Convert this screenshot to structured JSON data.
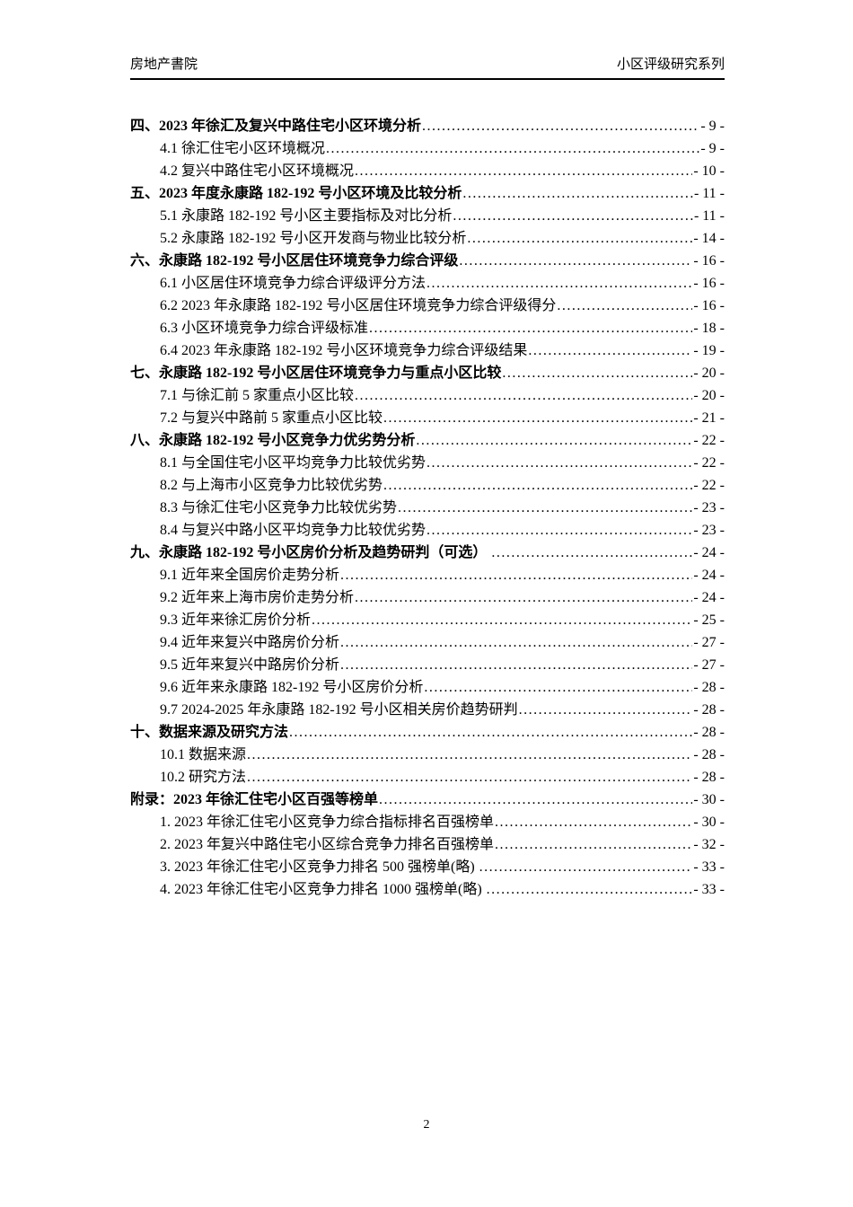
{
  "colors": {
    "text": "#000000",
    "rule": "#000000",
    "background": "#ffffff"
  },
  "header": {
    "left_title": "房地产書院",
    "right_title": "小区评级研究系列"
  },
  "toc": {
    "entries": [
      {
        "level": 1,
        "text": "四、2023 年徐汇及复兴中路住宅小区环境分析",
        "page": "- 9 -"
      },
      {
        "level": 2,
        "text": "4.1 徐汇住宅小区环境概况",
        "page": "- 9 -"
      },
      {
        "level": 2,
        "text": "4.2 复兴中路住宅小区环境概况",
        "page": "- 10 -"
      },
      {
        "level": 1,
        "text": "五、2023 年度永康路 182-192 号小区环境及比较分析",
        "page": "- 11 -"
      },
      {
        "level": 2,
        "text": "5.1 永康路 182-192 号小区主要指标及对比分析",
        "page": "- 11 -"
      },
      {
        "level": 2,
        "text": "5.2 永康路 182-192 号小区开发商与物业比较分析",
        "page": "- 14 -"
      },
      {
        "level": 1,
        "text": "六、永康路 182-192 号小区居住环境竞争力综合评级",
        "page": "- 16 -"
      },
      {
        "level": 2,
        "text": "6.1 小区居住环境竞争力综合评级评分方法",
        "page": "- 16 -"
      },
      {
        "level": 2,
        "text": "6.2 2023 年永康路 182-192 号小区居住环境竞争力综合评级得分",
        "page": "- 16 -"
      },
      {
        "level": 2,
        "text": "6.3 小区环境竞争力综合评级标准",
        "page": "- 18 -"
      },
      {
        "level": 2,
        "text": "6.4 2023 年永康路 182-192 号小区环境竞争力综合评级结果",
        "page": "- 19 -"
      },
      {
        "level": 1,
        "text": "七、永康路 182-192 号小区居住环境竞争力与重点小区比较",
        "page": "- 20 -"
      },
      {
        "level": 2,
        "text": "7.1 与徐汇前 5 家重点小区比较",
        "page": "- 20 -"
      },
      {
        "level": 2,
        "text": "7.2 与复兴中路前 5 家重点小区比较",
        "page": "- 21 -"
      },
      {
        "level": 1,
        "text": "八、永康路 182-192 号小区竞争力优劣势分析",
        "page": "- 22 -"
      },
      {
        "level": 2,
        "text": "8.1 与全国住宅小区平均竞争力比较优劣势",
        "page": "- 22 -"
      },
      {
        "level": 2,
        "text": "8.2 与上海市小区竞争力比较优劣势",
        "page": "- 22 -"
      },
      {
        "level": 2,
        "text": "8.3 与徐汇住宅小区竞争力比较优劣势",
        "page": "- 23 -"
      },
      {
        "level": 2,
        "text": "8.4 与复兴中路小区平均竞争力比较优劣势",
        "page": "- 23 -"
      },
      {
        "level": 1,
        "text": "九、永康路 182-192 号小区房价分析及趋势研判（可选） ",
        "page": "- 24 -"
      },
      {
        "level": 2,
        "text": "9.1 近年来全国房价走势分析",
        "page": "- 24 -"
      },
      {
        "level": 2,
        "text": "9.2 近年来上海市房价走势分析",
        "page": "- 24 -"
      },
      {
        "level": 2,
        "text": "9.3 近年来徐汇房价分析",
        "page": "- 25 -"
      },
      {
        "level": 2,
        "text": "9.4 近年来复兴中路房价分析",
        "page": "- 27 -"
      },
      {
        "level": 2,
        "text": "9.5 近年来复兴中路房价分析",
        "page": "- 27 -"
      },
      {
        "level": 2,
        "text": "9.6 近年来永康路 182-192 号小区房价分析",
        "page": "- 28 -"
      },
      {
        "level": 2,
        "text": "9.7 2024-2025 年永康路 182-192 号小区相关房价趋势研判",
        "page": "- 28 -"
      },
      {
        "level": 1,
        "text": "十、数据来源及研究方法",
        "page": "- 28 -"
      },
      {
        "level": 2,
        "text": "10.1 数据来源",
        "page": "- 28 -"
      },
      {
        "level": 2,
        "text": "10.2 研究方法",
        "page": "- 28 -"
      },
      {
        "level": 1,
        "text": "附录：2023 年徐汇住宅小区百强等榜单",
        "page": "- 30 -"
      },
      {
        "level": 2,
        "text": "1. 2023 年徐汇住宅小区竞争力综合指标排名百强榜单",
        "page": "- 30 -"
      },
      {
        "level": 2,
        "text": "2. 2023 年复兴中路住宅小区综合竞争力排名百强榜单",
        "page": "- 32 -"
      },
      {
        "level": 2,
        "text": "3. 2023 年徐汇住宅小区竞争力排名 500 强榜单(略) ",
        "page": "- 33 -"
      },
      {
        "level": 2,
        "text": "4. 2023 年徐汇住宅小区竞争力排名 1000 强榜单(略) ",
        "page": "- 33 -"
      }
    ]
  },
  "footer": {
    "page_number": "2"
  }
}
